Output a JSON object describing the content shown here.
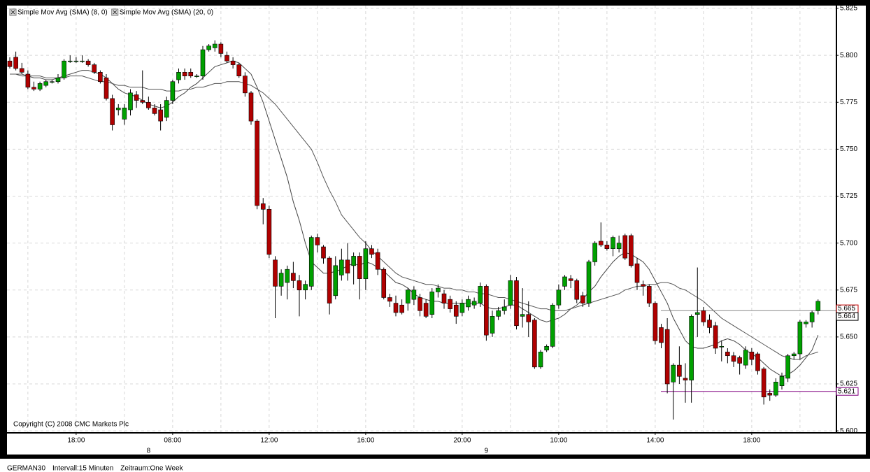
{
  "chart_data": {
    "type": "candlestick",
    "categories": [
      null,
      null,
      null,
      null,
      null,
      null,
      null,
      null,
      null,
      null,
      null,
      "18:00",
      null,
      null,
      null,
      null,
      null,
      null,
      null,
      null,
      null,
      null,
      null,
      null,
      null,
      null,
      null,
      "08:00",
      null,
      null,
      null,
      null,
      null,
      null,
      null,
      null,
      null,
      null,
      null,
      null,
      null,
      null,
      null,
      "12:00",
      null,
      null,
      null,
      null,
      null,
      null,
      null,
      null,
      null,
      null,
      null,
      null,
      null,
      null,
      null,
      "16:00",
      null,
      null,
      null,
      null,
      null,
      null,
      null,
      null,
      null,
      null,
      null,
      null,
      null,
      null,
      null,
      "20:00",
      null,
      null,
      null,
      null,
      null,
      null,
      null,
      null,
      null,
      null,
      null,
      null,
      null,
      null,
      null,
      "10:00",
      null,
      null,
      null,
      null,
      null,
      null,
      null,
      null,
      null,
      null,
      null,
      null,
      null,
      null,
      null,
      "14:00",
      null,
      null,
      null,
      null,
      null,
      null,
      null,
      null,
      null,
      null,
      null,
      null,
      null,
      null,
      null,
      "18:00",
      null,
      null,
      null,
      null,
      null,
      null,
      null,
      null,
      null,
      null,
      null
    ],
    "day_labels": [
      null,
      null,
      null,
      null,
      null,
      null,
      null,
      null,
      null,
      null,
      null,
      null,
      null,
      null,
      null,
      null,
      null,
      null,
      null,
      null,
      null,
      null,
      null,
      "8",
      null,
      null,
      null,
      null,
      null,
      null,
      null,
      null,
      null,
      null,
      null,
      null,
      null,
      null,
      null,
      null,
      null,
      null,
      null,
      null,
      null,
      null,
      null,
      null,
      null,
      null,
      null,
      null,
      null,
      null,
      null,
      null,
      null,
      null,
      null,
      null,
      null,
      null,
      null,
      null,
      null,
      null,
      null,
      null,
      null,
      null,
      null,
      null,
      null,
      null,
      null,
      null,
      null,
      null,
      null,
      "9",
      null,
      null,
      null,
      null,
      null,
      null,
      null,
      null,
      null,
      null,
      null,
      null,
      null,
      null,
      null,
      null,
      null,
      null,
      null,
      null,
      null,
      null,
      null,
      null,
      null,
      null,
      null,
      null,
      null,
      null,
      null,
      null,
      null,
      null,
      null,
      null,
      null,
      null,
      null,
      null,
      null,
      null,
      null,
      null,
      null,
      null,
      null,
      null,
      null,
      null,
      null,
      null,
      null,
      null,
      null
    ],
    "open": [
      5.797,
      5.799,
      5.793,
      5.79,
      5.783,
      5.782,
      5.784,
      5.786,
      5.786,
      5.788,
      5.797,
      5.797,
      5.797,
      5.797,
      5.795,
      5.791,
      5.788,
      5.777,
      5.771,
      5.766,
      5.771,
      5.779,
      5.776,
      5.775,
      5.772,
      5.771,
      5.767,
      5.776,
      5.787,
      5.791,
      5.791,
      5.789,
      5.789,
      5.803,
      5.804,
      5.806,
      5.8,
      5.797,
      5.795,
      5.789,
      5.78,
      5.765,
      5.721,
      5.718,
      5.691,
      5.677,
      5.679,
      5.684,
      5.68,
      5.675,
      5.677,
      5.703,
      5.698,
      5.692,
      5.672,
      5.683,
      5.691,
      5.688,
      5.693,
      5.681,
      5.697,
      5.695,
      5.686,
      5.671,
      5.668,
      5.667,
      5.668,
      5.67,
      5.671,
      5.668,
      5.662,
      5.674,
      5.673,
      5.67,
      5.667,
      5.663,
      5.666,
      5.667,
      5.668,
      5.677,
      5.652,
      5.661,
      5.664,
      5.667,
      5.68,
      5.661,
      5.662,
      5.659,
      5.634,
      5.643,
      5.645,
      5.667,
      5.677,
      5.681,
      5.68,
      5.672,
      5.668,
      5.69,
      5.701,
      5.699,
      5.697,
      5.697,
      5.704,
      5.704,
      5.689,
      5.678,
      5.677,
      5.668,
      5.655,
      5.654,
      5.626,
      5.635,
      5.628,
      5.627,
      5.662,
      5.664,
      5.659,
      5.656,
      5.645,
      5.642,
      5.64,
      5.639,
      5.635,
      5.642,
      5.641,
      5.633,
      5.62,
      5.619,
      5.624,
      5.628,
      5.64,
      5.641,
      5.657,
      5.658,
      5.664
    ],
    "high": [
      5.799,
      5.802,
      5.796,
      5.792,
      5.786,
      5.786,
      5.787,
      5.787,
      5.79,
      5.798,
      5.8,
      5.799,
      5.8,
      5.798,
      5.796,
      5.792,
      5.79,
      5.779,
      5.774,
      5.774,
      5.782,
      5.781,
      5.792,
      5.778,
      5.774,
      5.774,
      5.778,
      5.787,
      5.793,
      5.793,
      5.793,
      5.79,
      5.805,
      5.806,
      5.808,
      5.807,
      5.802,
      5.799,
      5.796,
      5.791,
      5.781,
      5.766,
      5.724,
      5.72,
      5.693,
      5.686,
      5.688,
      5.69,
      5.683,
      5.68,
      5.704,
      5.705,
      5.699,
      5.693,
      5.693,
      5.697,
      5.7,
      5.695,
      5.695,
      5.701,
      5.699,
      5.697,
      5.687,
      5.673,
      5.672,
      5.67,
      5.676,
      5.677,
      5.673,
      5.67,
      5.676,
      5.678,
      5.675,
      5.672,
      5.669,
      5.67,
      5.672,
      5.671,
      5.679,
      5.678,
      5.664,
      5.666,
      5.67,
      5.683,
      5.682,
      5.676,
      5.669,
      5.66,
      5.643,
      5.646,
      5.668,
      5.678,
      5.683,
      5.683,
      5.681,
      5.674,
      5.691,
      5.701,
      5.711,
      5.701,
      5.704,
      5.704,
      5.705,
      5.705,
      5.692,
      5.68,
      5.678,
      5.669,
      5.657,
      5.66,
      5.636,
      5.645,
      5.636,
      5.662,
      5.687,
      5.666,
      5.662,
      5.658,
      5.648,
      5.644,
      5.642,
      5.64,
      5.645,
      5.644,
      5.642,
      5.634,
      5.622,
      5.628,
      5.631,
      5.641,
      5.642,
      5.659,
      5.659,
      5.664,
      5.67
    ],
    "low": [
      5.793,
      5.792,
      5.79,
      5.782,
      5.781,
      5.781,
      5.783,
      5.785,
      5.785,
      5.787,
      5.796,
      5.796,
      5.796,
      5.794,
      5.79,
      5.785,
      5.776,
      5.76,
      5.768,
      5.763,
      5.768,
      5.772,
      5.774,
      5.771,
      5.768,
      5.76,
      5.765,
      5.774,
      5.785,
      5.787,
      5.788,
      5.788,
      5.787,
      5.802,
      5.802,
      5.799,
      5.796,
      5.793,
      5.788,
      5.778,
      5.763,
      5.718,
      5.71,
      5.692,
      5.66,
      5.672,
      5.67,
      5.676,
      5.661,
      5.67,
      5.675,
      5.695,
      5.689,
      5.662,
      5.67,
      5.68,
      5.68,
      5.678,
      5.67,
      5.675,
      5.692,
      5.683,
      5.67,
      5.666,
      5.661,
      5.662,
      5.664,
      5.667,
      5.661,
      5.66,
      5.66,
      5.671,
      5.665,
      5.663,
      5.657,
      5.661,
      5.664,
      5.665,
      5.666,
      5.648,
      5.65,
      5.659,
      5.662,
      5.665,
      5.654,
      5.655,
      5.65,
      5.633,
      5.633,
      5.642,
      5.644,
      5.665,
      5.675,
      5.676,
      5.668,
      5.666,
      5.666,
      5.688,
      5.698,
      5.696,
      5.693,
      5.695,
      5.691,
      5.687,
      5.675,
      5.672,
      5.666,
      5.646,
      5.644,
      5.62,
      5.606,
      5.625,
      5.615,
      5.615,
      5.65,
      5.656,
      5.652,
      5.641,
      5.637,
      5.636,
      5.634,
      5.63,
      5.633,
      5.635,
      5.63,
      5.614,
      5.616,
      5.618,
      5.622,
      5.626,
      5.638,
      5.638,
      5.655,
      5.655,
      5.662
    ],
    "close": [
      5.794,
      5.793,
      5.791,
      5.783,
      5.782,
      5.785,
      5.786,
      5.786,
      5.788,
      5.797,
      5.797,
      5.797,
      5.797,
      5.795,
      5.791,
      5.786,
      5.777,
      5.763,
      5.772,
      5.772,
      5.78,
      5.776,
      5.775,
      5.772,
      5.769,
      5.765,
      5.776,
      5.786,
      5.791,
      5.789,
      5.789,
      5.789,
      5.803,
      5.805,
      5.806,
      5.801,
      5.797,
      5.795,
      5.789,
      5.78,
      5.765,
      5.72,
      5.718,
      5.694,
      5.677,
      5.684,
      5.686,
      5.68,
      5.675,
      5.678,
      5.703,
      5.699,
      5.692,
      5.668,
      5.688,
      5.691,
      5.684,
      5.693,
      5.681,
      5.697,
      5.694,
      5.686,
      5.671,
      5.669,
      5.663,
      5.663,
      5.675,
      5.675,
      5.664,
      5.661,
      5.674,
      5.676,
      5.668,
      5.665,
      5.661,
      5.668,
      5.67,
      5.669,
      5.677,
      5.651,
      5.661,
      5.664,
      5.666,
      5.68,
      5.656,
      5.662,
      5.658,
      5.634,
      5.642,
      5.645,
      5.667,
      5.675,
      5.682,
      5.68,
      5.67,
      5.668,
      5.69,
      5.7,
      5.699,
      5.697,
      5.703,
      5.7,
      5.692,
      5.688,
      5.679,
      5.677,
      5.668,
      5.648,
      5.647,
      5.625,
      5.635,
      5.629,
      5.627,
      5.661,
      5.663,
      5.658,
      5.655,
      5.644,
      5.645,
      5.64,
      5.637,
      5.636,
      5.643,
      5.638,
      5.632,
      5.618,
      5.619,
      5.626,
      5.629,
      5.64,
      5.641,
      5.658,
      5.658,
      5.663,
      5.669
    ],
    "up_color": "#00a000",
    "down_color": "#b00000",
    "series": [
      {
        "name": "Simple Mov Avg (SMA) (8, 0)",
        "color": "#444444",
        "values": [
          5.79,
          5.79,
          5.789,
          5.789,
          5.788,
          5.788,
          5.787,
          5.787,
          5.788,
          5.789,
          5.79,
          5.791,
          5.792,
          5.792,
          5.791,
          5.79,
          5.788,
          5.785,
          5.782,
          5.78,
          5.779,
          5.778,
          5.776,
          5.774,
          5.773,
          5.772,
          5.773,
          5.775,
          5.778,
          5.78,
          5.783,
          5.785,
          5.788,
          5.791,
          5.794,
          5.795,
          5.796,
          5.797,
          5.796,
          5.793,
          5.79,
          5.783,
          5.775,
          5.765,
          5.755,
          5.745,
          5.735,
          5.722,
          5.712,
          5.7,
          5.69,
          5.687,
          5.684,
          5.684,
          5.685,
          5.686,
          5.688,
          5.689,
          5.688,
          5.69,
          5.689,
          5.687,
          5.685,
          5.682,
          5.679,
          5.678,
          5.676,
          5.673,
          5.671,
          5.67,
          5.669,
          5.669,
          5.668,
          5.668,
          5.668,
          5.668,
          5.668,
          5.668,
          5.668,
          5.666,
          5.665,
          5.665,
          5.666,
          5.667,
          5.667,
          5.665,
          5.663,
          5.661,
          5.659,
          5.658,
          5.659,
          5.66,
          5.662,
          5.665,
          5.667,
          5.67,
          5.674,
          5.677,
          5.682,
          5.686,
          5.69,
          5.693,
          5.695,
          5.694,
          5.692,
          5.69,
          5.686,
          5.68,
          5.674,
          5.668,
          5.66,
          5.654,
          5.648,
          5.645,
          5.644,
          5.644,
          5.645,
          5.646,
          5.648,
          5.649,
          5.648,
          5.646,
          5.643,
          5.641,
          5.639,
          5.636,
          5.633,
          5.631,
          5.629,
          5.63,
          5.632,
          5.635,
          5.639,
          5.643,
          5.651
        ]
      },
      {
        "name": "Simple Mov Avg (SMA) (20, 0)",
        "color": "#555555",
        "values": [
          5.79,
          5.79,
          5.79,
          5.789,
          5.789,
          5.789,
          5.788,
          5.788,
          5.788,
          5.788,
          5.789,
          5.789,
          5.789,
          5.788,
          5.787,
          5.786,
          5.786,
          5.785,
          5.784,
          5.784,
          5.783,
          5.783,
          5.783,
          5.782,
          5.782,
          5.782,
          5.781,
          5.781,
          5.781,
          5.782,
          5.782,
          5.783,
          5.783,
          5.784,
          5.785,
          5.785,
          5.786,
          5.786,
          5.786,
          5.785,
          5.784,
          5.782,
          5.78,
          5.777,
          5.774,
          5.77,
          5.766,
          5.762,
          5.758,
          5.754,
          5.75,
          5.743,
          5.735,
          5.728,
          5.722,
          5.715,
          5.711,
          5.707,
          5.703,
          5.7,
          5.696,
          5.693,
          5.69,
          5.687,
          5.684,
          5.682,
          5.681,
          5.68,
          5.679,
          5.678,
          5.678,
          5.677,
          5.676,
          5.676,
          5.675,
          5.675,
          5.674,
          5.674,
          5.673,
          5.673,
          5.672,
          5.671,
          5.671,
          5.67,
          5.669,
          5.668,
          5.667,
          5.666,
          5.665,
          5.665,
          5.664,
          5.664,
          5.664,
          5.665,
          5.666,
          5.667,
          5.668,
          5.669,
          5.67,
          5.671,
          5.672,
          5.673,
          5.675,
          5.676,
          5.677,
          5.677,
          5.678,
          5.678,
          5.679,
          5.679,
          5.678,
          5.676,
          5.675,
          5.673,
          5.671,
          5.669,
          5.666,
          5.663,
          5.66,
          5.658,
          5.656,
          5.654,
          5.652,
          5.65,
          5.648,
          5.646,
          5.644,
          5.642,
          5.64,
          5.639,
          5.638,
          5.638,
          5.64,
          5.641,
          5.642
        ]
      }
    ],
    "ylim": [
      5.5993,
      5.8265
    ],
    "yticks": [
      {
        "value": 5.6,
        "label": "5.600"
      },
      {
        "value": 5.625,
        "label": "5.625"
      },
      {
        "value": 5.65,
        "label": "5.650"
      },
      {
        "value": 5.675,
        "label": "5.675"
      },
      {
        "value": 5.7,
        "label": "5.700"
      },
      {
        "value": 5.725,
        "label": "5.725"
      },
      {
        "value": 5.75,
        "label": "5.750"
      },
      {
        "value": 5.775,
        "label": "5.775"
      },
      {
        "value": 5.8,
        "label": "5.800"
      },
      {
        "value": 5.825,
        "label": "5.825"
      }
    ],
    "grid": true,
    "price_markers": [
      {
        "value": 5.665,
        "color": "#c00000",
        "line": false
      },
      {
        "value": 5.664,
        "color": "#000000",
        "line": true
      },
      {
        "value": 5.621,
        "color": "#800080",
        "line": true
      }
    ],
    "copyright": "Copyright (C) 2008 CMC Markets Plc",
    "footer": [
      "GERMAN30",
      "Intervall:15 Minuten",
      "Zeitraum:One Week"
    ]
  }
}
